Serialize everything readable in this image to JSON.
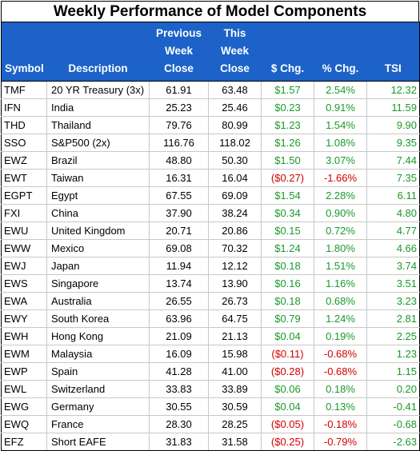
{
  "title": "Weekly Performance of Model Components",
  "headers": {
    "symbol": "Symbol",
    "description": "Description",
    "prev_close": [
      "Previous",
      "Week",
      "Close"
    ],
    "this_close": [
      "This",
      "Week",
      "Close"
    ],
    "dollar_chg": "$ Chg.",
    "pct_chg": "% Chg.",
    "tsi": "TSI"
  },
  "colors": {
    "header_bg": "#1c62c8",
    "positive": "#1a9a2a",
    "negative": "#d40000"
  },
  "rows": [
    {
      "symbol": "TMF",
      "description": "20 YR Treasury (3x)",
      "prev": "61.91",
      "curr": "63.48",
      "chg": "$1.57",
      "pct": "2.54%",
      "tsi": "12.32",
      "dir": "pos"
    },
    {
      "symbol": "IFN",
      "description": "India",
      "prev": "25.23",
      "curr": "25.46",
      "chg": "$0.23",
      "pct": "0.91%",
      "tsi": "11.59",
      "dir": "pos"
    },
    {
      "symbol": "THD",
      "description": "Thailand",
      "prev": "79.76",
      "curr": "80.99",
      "chg": "$1.23",
      "pct": "1.54%",
      "tsi": "9.90",
      "dir": "pos"
    },
    {
      "symbol": "SSO",
      "description": "S&P500 (2x)",
      "prev": "116.76",
      "curr": "118.02",
      "chg": "$1.26",
      "pct": "1.08%",
      "tsi": "9.35",
      "dir": "pos"
    },
    {
      "symbol": "EWZ",
      "description": "Brazil",
      "prev": "48.80",
      "curr": "50.30",
      "chg": "$1.50",
      "pct": "3.07%",
      "tsi": "7.44",
      "dir": "pos"
    },
    {
      "symbol": "EWT",
      "description": "Taiwan",
      "prev": "16.31",
      "curr": "16.04",
      "chg": "($0.27)",
      "pct": "-1.66%",
      "tsi": "7.35",
      "dir": "neg"
    },
    {
      "symbol": "EGPT",
      "description": "Egypt",
      "prev": "67.55",
      "curr": "69.09",
      "chg": "$1.54",
      "pct": "2.28%",
      "tsi": "6.11",
      "dir": "pos"
    },
    {
      "symbol": "FXI",
      "description": "China",
      "prev": "37.90",
      "curr": "38.24",
      "chg": "$0.34",
      "pct": "0.90%",
      "tsi": "4.80",
      "dir": "pos"
    },
    {
      "symbol": "EWU",
      "description": "United Kingdom",
      "prev": "20.71",
      "curr": "20.86",
      "chg": "$0.15",
      "pct": "0.72%",
      "tsi": "4.77",
      "dir": "pos"
    },
    {
      "symbol": "EWW",
      "description": "Mexico",
      "prev": "69.08",
      "curr": "70.32",
      "chg": "$1.24",
      "pct": "1.80%",
      "tsi": "4.66",
      "dir": "pos"
    },
    {
      "symbol": "EWJ",
      "description": "Japan",
      "prev": "11.94",
      "curr": "12.12",
      "chg": "$0.18",
      "pct": "1.51%",
      "tsi": "3.74",
      "dir": "pos"
    },
    {
      "symbol": "EWS",
      "description": "Singapore",
      "prev": "13.74",
      "curr": "13.90",
      "chg": "$0.16",
      "pct": "1.16%",
      "tsi": "3.51",
      "dir": "pos"
    },
    {
      "symbol": "EWA",
      "description": "Australia",
      "prev": "26.55",
      "curr": "26.73",
      "chg": "$0.18",
      "pct": "0.68%",
      "tsi": "3.23",
      "dir": "pos"
    },
    {
      "symbol": "EWY",
      "description": "South Korea",
      "prev": "63.96",
      "curr": "64.75",
      "chg": "$0.79",
      "pct": "1.24%",
      "tsi": "2.81",
      "dir": "pos"
    },
    {
      "symbol": "EWH",
      "description": "Hong Kong",
      "prev": "21.09",
      "curr": "21.13",
      "chg": "$0.04",
      "pct": "0.19%",
      "tsi": "2.25",
      "dir": "pos"
    },
    {
      "symbol": "EWM",
      "description": "Malaysia",
      "prev": "16.09",
      "curr": "15.98",
      "chg": "($0.11)",
      "pct": "-0.68%",
      "tsi": "1.23",
      "dir": "neg"
    },
    {
      "symbol": "EWP",
      "description": "Spain",
      "prev": "41.28",
      "curr": "41.00",
      "chg": "($0.28)",
      "pct": "-0.68%",
      "tsi": "1.15",
      "dir": "neg"
    },
    {
      "symbol": "EWL",
      "description": "Switzerland",
      "prev": "33.83",
      "curr": "33.89",
      "chg": "$0.06",
      "pct": "0.18%",
      "tsi": "0.20",
      "dir": "pos"
    },
    {
      "symbol": "EWG",
      "description": "Germany",
      "prev": "30.55",
      "curr": "30.59",
      "chg": "$0.04",
      "pct": "0.13%",
      "tsi": "-0.41",
      "dir": "pos"
    },
    {
      "symbol": "EWQ",
      "description": "France",
      "prev": "28.30",
      "curr": "28.25",
      "chg": "($0.05)",
      "pct": "-0.18%",
      "tsi": "-0.68",
      "dir": "neg"
    },
    {
      "symbol": "EFZ",
      "description": "Short EAFE",
      "prev": "31.83",
      "curr": "31.58",
      "chg": "($0.25)",
      "pct": "-0.79%",
      "tsi": "-2.63",
      "dir": "neg"
    }
  ]
}
